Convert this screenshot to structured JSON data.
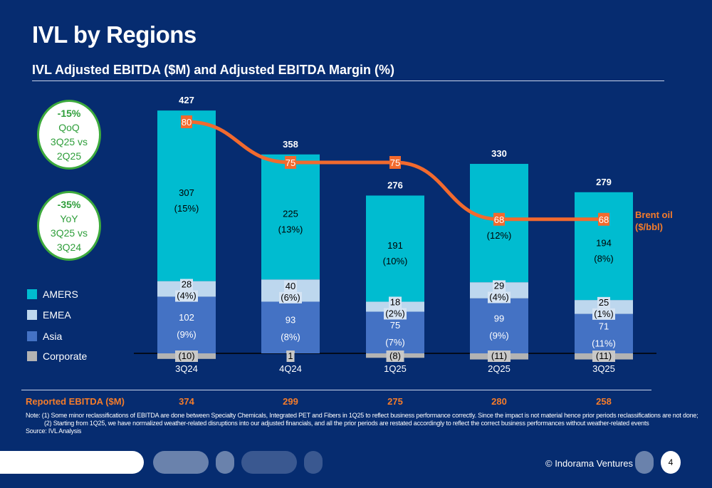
{
  "header": {
    "title": "IVL by Regions",
    "subtitle": "IVL Adjusted EBITDA ($M) and Adjusted EBITDA Margin (%)"
  },
  "callouts": [
    {
      "value": "-15%",
      "line1": "QoQ",
      "line2": "3Q25 vs",
      "line3": "2Q25"
    },
    {
      "value": "-35%",
      "line1": "YoY",
      "line2": "3Q25 vs",
      "line3": "3Q24"
    }
  ],
  "chart_data": {
    "type": "bar",
    "stacked": true,
    "categories": [
      "3Q24",
      "4Q24",
      "1Q25",
      "2Q25",
      "3Q25"
    ],
    "series": [
      {
        "name": "Asia",
        "color": "#4472c4",
        "values": [
          102,
          93,
          75,
          99,
          71
        ],
        "labels": [
          "102",
          "93",
          "75",
          "99",
          "71"
        ],
        "margins": [
          "(9%)",
          "(8%)",
          "(7%)",
          "(9%)",
          "(11%)"
        ]
      },
      {
        "name": "EMEA",
        "color": "#bdd7ee",
        "values": [
          28,
          40,
          18,
          29,
          25
        ],
        "labels": [
          "28",
          "40",
          "18",
          "29",
          "25"
        ],
        "margins": [
          "(4%)",
          "(6%)",
          "(2%)",
          "(4%)",
          "(1%)"
        ]
      },
      {
        "name": "AMERS",
        "color": "#00bcd0",
        "values": [
          307,
          225,
          191,
          213,
          194
        ],
        "labels": [
          "307",
          "225",
          "191",
          "",
          "194"
        ],
        "margins": [
          "(15%)",
          "(13%)",
          "(10%)",
          "(12%)",
          "(8%)"
        ]
      },
      {
        "name": "Corporate",
        "color": "#b3b3b3",
        "values": [
          -10,
          1,
          -8,
          -11,
          -11
        ],
        "labels": [
          "(10)",
          "1",
          "(8)",
          "(11)",
          "(11)"
        ]
      }
    ],
    "totals": [
      427,
      358,
      276,
      330,
      279
    ],
    "line": {
      "name": "Brent oil ($/bbl)",
      "label_line1": "Brent oil",
      "label_line2": "($/bbl)",
      "color": "#f26a2e",
      "values": [
        80,
        75,
        75,
        68,
        68
      ]
    },
    "reported": {
      "label": "Reported EBITDA ($M)",
      "values": [
        374,
        299,
        275,
        280,
        258
      ]
    }
  },
  "notes": {
    "line1": "Note: (1) Some minor reclassifications of EBITDA are done between Specialty Chemicals, Integrated PET and Fibers in 1Q25 to reflect business performance correctly. Since the impact is not material hence prior periods reclassifications are not done;",
    "line2": "(2) Starting from 1Q25, we have normalized weather-related disruptions into our adjusted financials, and all the prior periods are restated accordingly to reflect the correct business performances without weather-related events",
    "source": "Source: IVL Analysis"
  },
  "footer": {
    "copyright": "© Indorama Ventures",
    "page": "4"
  }
}
